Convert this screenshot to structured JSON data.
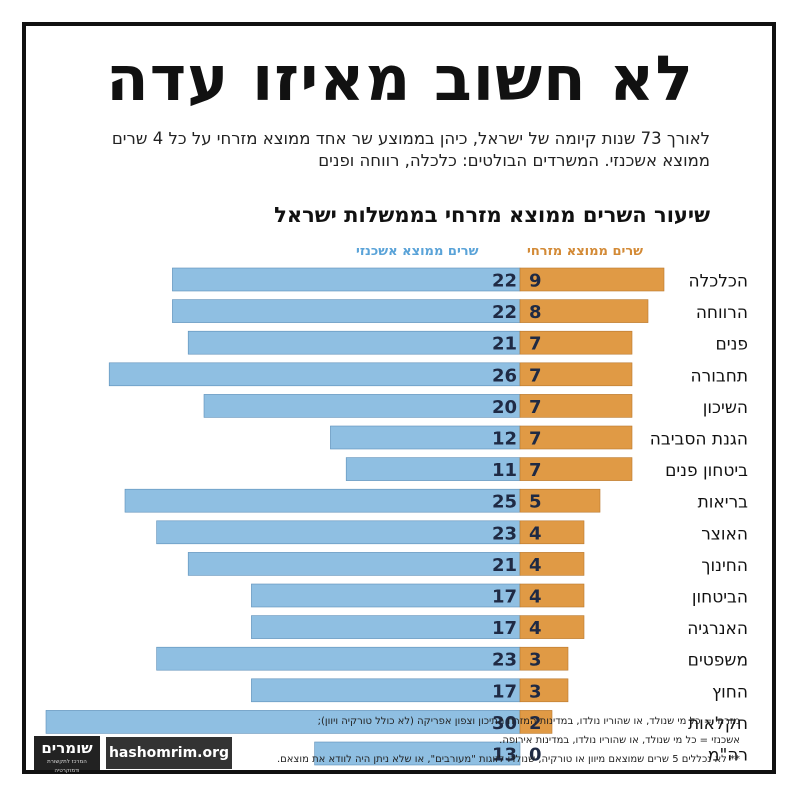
{
  "title": "לא חשוב מאיזו עדה",
  "subtitle": "לאורך 73 שנות קיומה של ישראל, כיהן בממוצע שר אחד ממוצא מזרחי על כל 4 שרים ממוצא אשכנזי. המשרדים הבולטים: כלכלה, רווחה ופנים",
  "colors": {
    "mizrahi": "#e09a45",
    "ashkenazi": "#8fbfe2",
    "frame": "#111111",
    "value_text": "#1f2a44"
  },
  "chart_data": {
    "type": "bar",
    "orientation": "horizontal",
    "title": "שיעור השרים ממוצא מזרחי בממשלות ישראל",
    "categories": [
      "הכלכלה",
      "הרווחה",
      "פנים",
      "תחבורה",
      "השיכון",
      "הגנת הסביבה",
      "ביטחון פנים",
      "בריאות",
      "האוצר",
      "החינוך",
      "הביטחון",
      "האנרגיה",
      "משפטים",
      "החוץ",
      "חקלאות",
      "רה\"מ"
    ],
    "series": [
      {
        "name": "שרים ממוצא מזרחי",
        "values": [
          9,
          8,
          7,
          7,
          7,
          7,
          7,
          5,
          4,
          4,
          4,
          4,
          3,
          3,
          2,
          0
        ]
      },
      {
        "name": "שרים ממוצא אשכנזי",
        "values": [
          22,
          22,
          21,
          26,
          20,
          12,
          11,
          25,
          23,
          21,
          17,
          17,
          23,
          17,
          30,
          13
        ]
      }
    ]
  },
  "footnotes": [
    "מזרחי = כל מי שנולד, או שהוריו נולדו, במדינות המזרח התיכון וצפון אפריקה (לא כולל טורקיה ויוון);",
    "אשכנזי = כל מי שנולד, או שהוריו נולדו, במדינות אירופה.",
    "** לא נכללים 5 שרים שמוצאם מיוון או טורקיה, שנולדו לזוגות \"מעורבים\", או שלא ניתן היה לוודא את מוצאם."
  ],
  "logo": {
    "name": "שומרים",
    "tagline": "המרכז לתקשורת ודמוקרטיה"
  },
  "site": "hashomrim.org"
}
